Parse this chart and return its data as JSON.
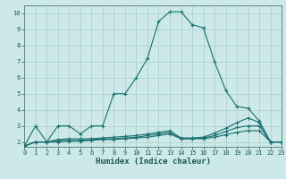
{
  "xlabel": "Humidex (Indice chaleur)",
  "bg_color": "#cce8e8",
  "grid_color": "#aacccc",
  "line_color": "#1a7070",
  "xlim": [
    0,
    23
  ],
  "ylim": [
    1.7,
    10.5
  ],
  "xticks": [
    0,
    1,
    2,
    3,
    4,
    5,
    6,
    7,
    8,
    9,
    10,
    11,
    12,
    13,
    14,
    15,
    16,
    17,
    18,
    19,
    20,
    21,
    22,
    23
  ],
  "yticks": [
    2,
    3,
    4,
    5,
    6,
    7,
    8,
    9,
    10
  ],
  "lines": [
    {
      "x": [
        0,
        1,
        2,
        3,
        4,
        5,
        6,
        7,
        8,
        9,
        10,
        11,
        12,
        13,
        14,
        15,
        16,
        17,
        18,
        19,
        20,
        21,
        22,
        23
      ],
      "y": [
        1.75,
        3.0,
        2.0,
        3.0,
        3.0,
        2.5,
        3.0,
        3.0,
        5.0,
        5.0,
        6.0,
        7.2,
        9.5,
        10.1,
        10.1,
        9.3,
        9.1,
        7.0,
        5.2,
        4.2,
        4.1,
        3.3,
        2.0,
        2.0
      ]
    },
    {
      "x": [
        0,
        1,
        2,
        3,
        4,
        5,
        6,
        7,
        8,
        9,
        10,
        11,
        12,
        13,
        14,
        15,
        16,
        17,
        18,
        19,
        20,
        21,
        22,
        23
      ],
      "y": [
        1.75,
        2.0,
        2.0,
        2.15,
        2.2,
        2.2,
        2.2,
        2.25,
        2.3,
        2.35,
        2.4,
        2.5,
        2.6,
        2.7,
        2.25,
        2.25,
        2.3,
        2.55,
        2.85,
        3.2,
        3.5,
        3.2,
        2.0,
        2.0
      ]
    },
    {
      "x": [
        0,
        1,
        2,
        3,
        4,
        5,
        6,
        7,
        8,
        9,
        10,
        11,
        12,
        13,
        14,
        15,
        16,
        17,
        18,
        19,
        20,
        21,
        22,
        23
      ],
      "y": [
        1.75,
        2.0,
        2.0,
        2.1,
        2.1,
        2.1,
        2.15,
        2.2,
        2.2,
        2.25,
        2.3,
        2.4,
        2.5,
        2.6,
        2.2,
        2.2,
        2.25,
        2.4,
        2.65,
        2.9,
        3.0,
        3.0,
        2.0,
        2.0
      ]
    },
    {
      "x": [
        0,
        1,
        2,
        3,
        4,
        5,
        6,
        7,
        8,
        9,
        10,
        11,
        12,
        13,
        14,
        15,
        16,
        17,
        18,
        19,
        20,
        21,
        22,
        23
      ],
      "y": [
        1.75,
        2.0,
        2.0,
        2.0,
        2.05,
        2.05,
        2.1,
        2.15,
        2.15,
        2.2,
        2.25,
        2.3,
        2.4,
        2.5,
        2.2,
        2.2,
        2.2,
        2.3,
        2.45,
        2.6,
        2.7,
        2.7,
        2.0,
        2.0
      ]
    }
  ]
}
